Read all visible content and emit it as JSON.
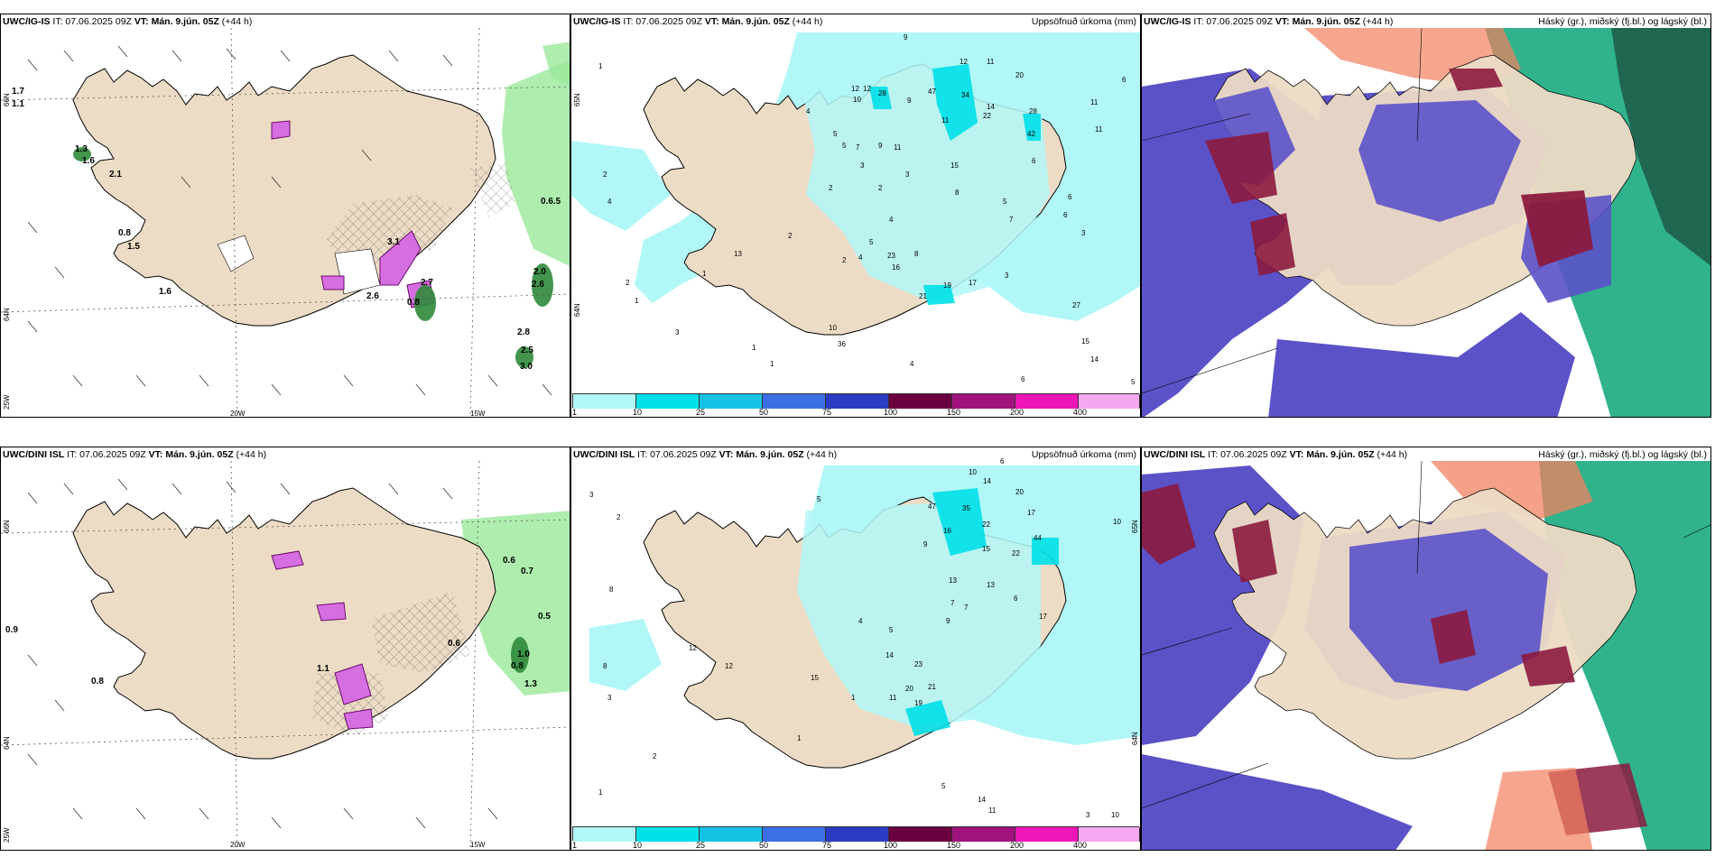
{
  "colors": {
    "land": "#eddcc5",
    "precip_1": "#b2f7f7",
    "precip_10": "#00e0e8",
    "precip_25": "#16c2e4",
    "precip_50": "#3b6fe3",
    "precip_75": "#2a3dc2",
    "precip_100": "#6b0040",
    "precip_150": "#a0137c",
    "precip_200": "#ee16b6",
    "precip_400": "#f4a8f0",
    "cloud_low": "#5b52c8",
    "cloud_mid": "#8b1a3e",
    "cloud_high": "#0ca679",
    "cloud_high2": "#1e5e4a",
    "cloud_warm": "#f28060",
    "wind_green": "#9be89b",
    "wind_magenta": "#d56ee0"
  },
  "panels": {
    "top_left": {
      "model": "UWC/IG-IS",
      "it_label": "IT: 07.06.2025 09Z",
      "vt_label": "VT: Mán. 9.jún. 05Z",
      "lead": "(+44 h)",
      "lat_labels": [
        "66N",
        "64N",
        "25W"
      ],
      "lon_labels": [
        "20W",
        "15W"
      ],
      "values": [
        "1.7",
        "1.1",
        "1.3",
        "1.6",
        "2.1",
        "0.8",
        "1.5",
        "1.6",
        "0.6.5",
        "2.0",
        "2.6",
        "2.8",
        "2.5",
        "3.0",
        "2.7",
        "0.8",
        "3.1",
        "2.6"
      ]
    },
    "top_center": {
      "model": "UWC/IG-IS",
      "it_label": "IT: 07.06.2025 09Z",
      "vt_label": "VT: Mán. 9.jún. 05Z",
      "lead": "(+44 h)",
      "title_right": "Uppsöfnuð úrkoma (mm)",
      "lat_labels": [
        "65N",
        "64N"
      ],
      "values": [
        "9",
        "1",
        "12",
        "11",
        "20",
        "6",
        "12",
        "12",
        "10",
        "28",
        "47",
        "34",
        "9",
        "11",
        "4",
        "22",
        "11",
        "14",
        "28",
        "42",
        "11",
        "2",
        "5",
        "5",
        "7",
        "9",
        "11",
        "3",
        "3",
        "6",
        "15",
        "6",
        "2",
        "2",
        "4",
        "8",
        "5",
        "6",
        "7",
        "4",
        "3",
        "2",
        "5",
        "8",
        "4",
        "13",
        "2",
        "23",
        "16",
        "21",
        "19",
        "17",
        "3",
        "1",
        "27",
        "15",
        "14",
        "10",
        "36",
        "4",
        "5",
        "6",
        "2",
        "1",
        "3",
        "1",
        "1"
      ],
      "colorbar": [
        "1",
        "10",
        "25",
        "50",
        "75",
        "100",
        "150",
        "200",
        "400"
      ]
    },
    "top_right": {
      "model": "UWC/IG-IS",
      "it_label": "IT: 07.06.2025 09Z",
      "vt_label": "VT: Mán. 9.jún. 05Z",
      "lead": "(+44 h)",
      "title_right": "Háský (gr.), miðský (fj.bl.) og lágský (bl.)"
    },
    "bottom_left": {
      "model": "UWC/DINI ISL",
      "it_label": "IT: 07.06.2025 09Z",
      "vt_label": "VT: Mán. 9.jún. 05Z",
      "lead": "(+44 h)",
      "lat_labels": [
        "66N",
        "64N",
        "25W"
      ],
      "lon_labels": [
        "20W",
        "15W"
      ],
      "values": [
        "0.6",
        "0.7",
        "0.9",
        "0.5",
        "0.8",
        "1.0",
        "0.8",
        "1.3",
        "1.1",
        "0.6"
      ]
    },
    "bottom_center": {
      "model": "UWC/DINI ISL",
      "it_label": "IT: 07.06.2025 09Z",
      "vt_label": "VT: Mán. 9.jún. 05Z",
      "lead": "(+44 h)",
      "title_right": "Uppsöfnuð úrkoma (mm)",
      "lat_labels": [
        "65N",
        "64N"
      ],
      "values": [
        "6",
        "10",
        "14",
        "20",
        "47",
        "35",
        "22",
        "16",
        "15",
        "44",
        "22",
        "17",
        "10",
        "5",
        "3",
        "2",
        "1",
        "8",
        "9",
        "12",
        "13",
        "23",
        "14",
        "21",
        "20",
        "19",
        "11",
        "17",
        "7",
        "15",
        "3",
        "4",
        "9",
        "5",
        "1",
        "14",
        "11",
        "10",
        "5",
        "3",
        "1",
        "2",
        "8",
        "6",
        "7",
        "12",
        "13"
      ],
      "colorbar": [
        "1",
        "10",
        "25",
        "50",
        "75",
        "100",
        "150",
        "200",
        "400"
      ]
    },
    "bottom_right": {
      "model": "UWC/DINI ISL",
      "it_label": "IT: 07.06.2025 09Z",
      "vt_label": "VT: Mán. 9.jún. 05Z",
      "lead": "(+44 h)",
      "title_right": "Háský (gr.), miðský (fj.bl.) og lágský (bl.)"
    }
  }
}
